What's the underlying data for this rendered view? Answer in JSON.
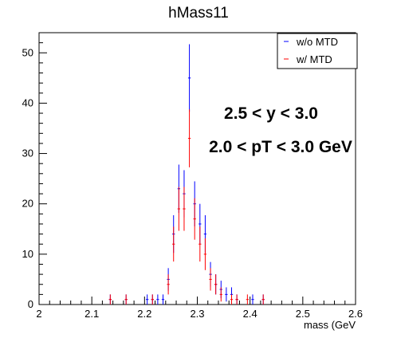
{
  "chart_data": {
    "type": "histogram-errorbars",
    "title": "hMass11",
    "xlabel": "mass (GeV",
    "ylabel": "",
    "xlim": [
      2.0,
      2.6
    ],
    "ylim": [
      0,
      54
    ],
    "x_ticks": [
      "2",
      "2.1",
      "2.2",
      "2.3",
      "2.4",
      "2.5",
      "2.6"
    ],
    "y_ticks": [
      "0",
      "10",
      "20",
      "30",
      "40",
      "50"
    ],
    "grid": false,
    "legend_position": "top-right",
    "legend": [
      "w/o MTD",
      "w/ MTD"
    ],
    "annotations": [
      "2.5 < y < 3.0",
      "2.0 < pT < 3.0 GeV"
    ],
    "bin_width": 0.005,
    "series": [
      {
        "name": "w/o MTD",
        "color": "#0000ff",
        "points": [
          [
            2.135,
            1
          ],
          [
            2.165,
            1
          ],
          [
            2.205,
            1
          ],
          [
            2.215,
            1
          ],
          [
            2.225,
            1
          ],
          [
            2.235,
            1
          ],
          [
            2.245,
            5
          ],
          [
            2.255,
            14
          ],
          [
            2.265,
            23
          ],
          [
            2.275,
            22
          ],
          [
            2.285,
            45
          ],
          [
            2.295,
            20
          ],
          [
            2.305,
            16
          ],
          [
            2.315,
            14
          ],
          [
            2.325,
            6
          ],
          [
            2.335,
            4
          ],
          [
            2.345,
            3
          ],
          [
            2.355,
            2
          ],
          [
            2.365,
            2
          ],
          [
            2.375,
            1
          ],
          [
            2.405,
            1
          ],
          [
            2.425,
            1
          ]
        ]
      },
      {
        "name": "w/ MTD",
        "color": "#ff0000",
        "points": [
          [
            2.135,
            1
          ],
          [
            2.165,
            1
          ],
          [
            2.215,
            1
          ],
          [
            2.245,
            4
          ],
          [
            2.255,
            12
          ],
          [
            2.265,
            19
          ],
          [
            2.275,
            19
          ],
          [
            2.285,
            33
          ],
          [
            2.295,
            17
          ],
          [
            2.305,
            12
          ],
          [
            2.315,
            10
          ],
          [
            2.325,
            5
          ],
          [
            2.335,
            4
          ],
          [
            2.345,
            2
          ],
          [
            2.365,
            1
          ],
          [
            2.375,
            1
          ],
          [
            2.395,
            1
          ],
          [
            2.425,
            1
          ]
        ]
      }
    ]
  }
}
